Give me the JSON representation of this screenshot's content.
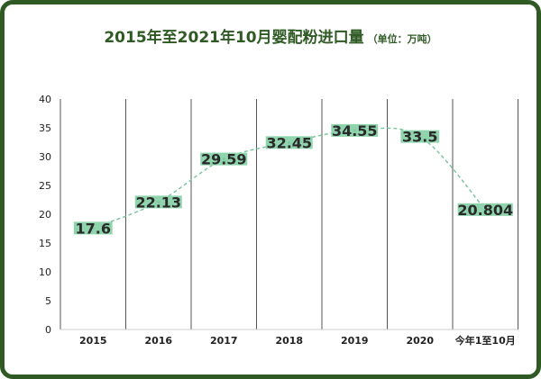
{
  "header": {
    "title": "2015年至2021年10月婴配粉进口量",
    "unit": "（单位：万吨）"
  },
  "colors": {
    "frame": "#2f5a24",
    "title": "#2f5a24",
    "line": "#7fc6a4",
    "label_bg": "#8fd4ad",
    "gridline": "#555555"
  },
  "chart_data": {
    "type": "line",
    "title": "2015年至2021年10月婴配粉进口量",
    "subtitle": "（单位：万吨）",
    "categories": [
      "2015",
      "2016",
      "2017",
      "2018",
      "2019",
      "2020",
      "今年1至10月"
    ],
    "series": [
      {
        "values": [
          17.6,
          22.13,
          29.59,
          32.45,
          34.55,
          33.5,
          20.804
        ],
        "labels": [
          "17.6",
          "22.13",
          "29.59",
          "32.45",
          "34.55",
          "33.5",
          "20.804"
        ]
      }
    ],
    "yticks": [
      "0",
      "5",
      "10",
      "15",
      "20",
      "25",
      "30",
      "35",
      "40"
    ],
    "ylim": [
      0,
      40
    ],
    "xlabel": "",
    "ylabel": "",
    "grid": "vertical",
    "line_style": "dashed"
  }
}
